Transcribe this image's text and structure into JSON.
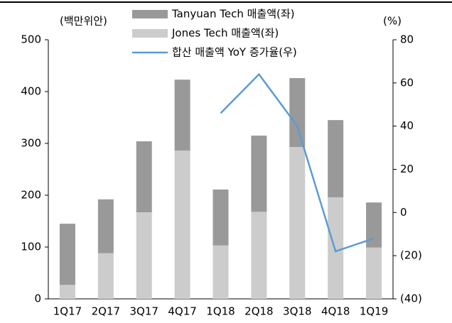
{
  "chart_data": {
    "type": "bar",
    "stacked": true,
    "y_axis_label": "(백만위안)",
    "y2_axis_label": "(%)",
    "categories": [
      "1Q17",
      "2Q17",
      "3Q17",
      "4Q17",
      "1Q18",
      "2Q18",
      "3Q18",
      "4Q18",
      "1Q19"
    ],
    "series": [
      {
        "name": "Tanyuan Tech 매출액(좌)",
        "type": "bar",
        "color": "#999999",
        "stack_order": 1,
        "values": [
          118,
          104,
          137,
          137,
          108,
          147,
          133,
          149,
          87
        ]
      },
      {
        "name": "Jones Tech 매출액(좌)",
        "type": "bar",
        "color": "#cccccc",
        "stack_order": 0,
        "values": [
          27,
          88,
          167,
          286,
          103,
          168,
          293,
          196,
          99
        ]
      },
      {
        "name": "합산 매출액 YoY 증가율(우)",
        "type": "line",
        "axis": "y2",
        "color": "#5b9bd5",
        "values": [
          null,
          null,
          null,
          null,
          46,
          64,
          40,
          -18,
          -12
        ]
      }
    ],
    "ylim": [
      0,
      500
    ],
    "yticks": [
      0,
      100,
      200,
      300,
      400,
      500
    ],
    "y2lim": [
      -40,
      80
    ],
    "y2ticks": [
      {
        "value": -40,
        "label": "(40)"
      },
      {
        "value": -20,
        "label": "(20)"
      },
      0,
      20,
      40,
      60,
      80
    ],
    "legend": "top"
  }
}
